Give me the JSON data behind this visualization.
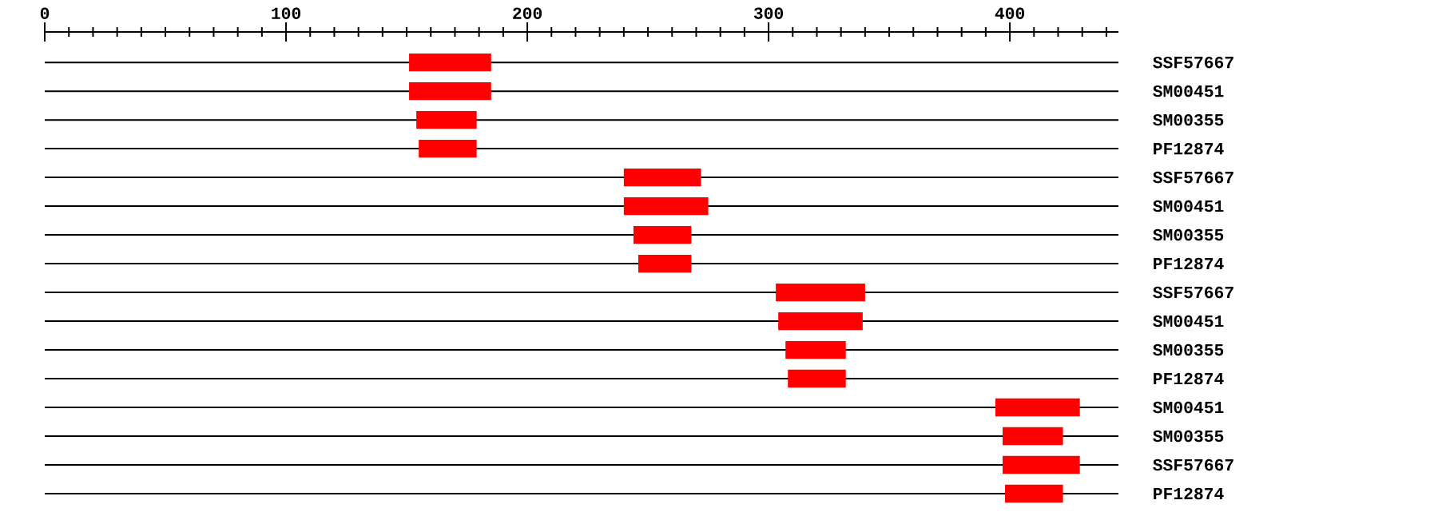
{
  "chart_data": {
    "type": "bar",
    "orientation": "horizontal",
    "color": "#ff0000",
    "grid": "y",
    "categories": [
      "SSF57667",
      "SM00451",
      "SM00355",
      "PF12874",
      "SSF57667",
      "SM00451",
      "SM00355",
      "PF12874",
      "SSF57667",
      "SM00451",
      "SM00355",
      "PF12874",
      "SM00451",
      "SM00355",
      "SSF57667",
      "PF12874"
    ],
    "base": [
      151,
      151,
      154,
      155,
      240,
      240,
      244,
      246,
      303,
      304,
      307,
      308,
      394,
      397,
      397,
      398
    ],
    "values": [
      34,
      34,
      25,
      24,
      32,
      35,
      24,
      22,
      37,
      35,
      25,
      24,
      35,
      25,
      32,
      24
    ],
    "xlim": [
      0,
      445
    ],
    "xticks": [
      0,
      {
        "value": 10,
        "label": null
      },
      {
        "value": 20,
        "label": null
      },
      {
        "value": 30,
        "label": null
      },
      {
        "value": 40,
        "label": null
      },
      {
        "value": 50,
        "label": null
      },
      {
        "value": 60,
        "label": null
      },
      {
        "value": 70,
        "label": null
      },
      {
        "value": 80,
        "label": null
      },
      {
        "value": 90,
        "label": null
      },
      100,
      {
        "value": 110,
        "label": null
      },
      {
        "value": 120,
        "label": null
      },
      {
        "value": 130,
        "label": null
      },
      {
        "value": 140,
        "label": null
      },
      {
        "value": 150,
        "label": null
      },
      {
        "value": 160,
        "label": null
      },
      {
        "value": 170,
        "label": null
      },
      {
        "value": 180,
        "label": null
      },
      {
        "value": 190,
        "label": null
      },
      200,
      {
        "value": 210,
        "label": null
      },
      {
        "value": 220,
        "label": null
      },
      {
        "value": 230,
        "label": null
      },
      {
        "value": 240,
        "label": null
      },
      {
        "value": 250,
        "label": null
      },
      {
        "value": 260,
        "label": null
      },
      {
        "value": 270,
        "label": null
      },
      {
        "value": 280,
        "label": null
      },
      {
        "value": 290,
        "label": null
      },
      300,
      {
        "value": 310,
        "label": null
      },
      {
        "value": 320,
        "label": null
      },
      {
        "value": 330,
        "label": null
      },
      {
        "value": 340,
        "label": null
      },
      {
        "value": 350,
        "label": null
      },
      {
        "value": 360,
        "label": null
      },
      {
        "value": 370,
        "label": null
      },
      {
        "value": 380,
        "label": null
      },
      {
        "value": 390,
        "label": null
      },
      400,
      {
        "value": 410,
        "label": null
      },
      {
        "value": 420,
        "label": null
      },
      {
        "value": 430,
        "label": null
      },
      {
        "value": 440,
        "label": null
      }
    ]
  }
}
